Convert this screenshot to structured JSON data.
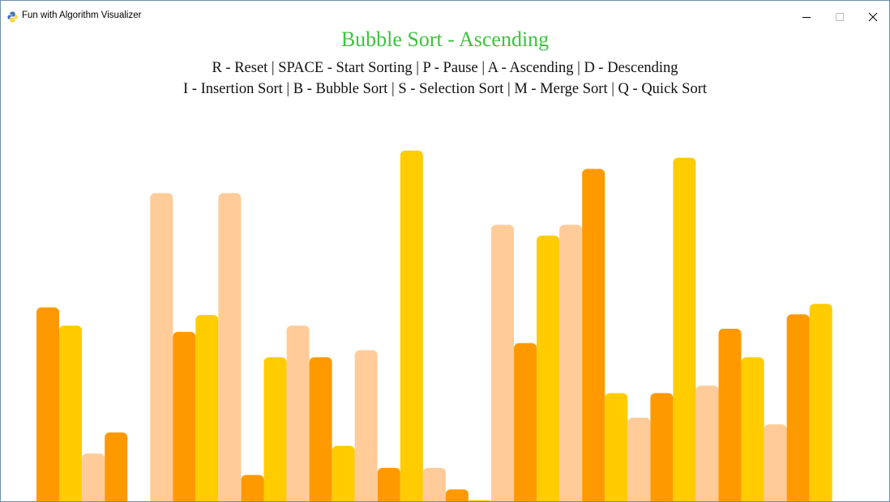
{
  "window": {
    "title": "Fun with Algorithm Visualizer",
    "icon": "python-icon",
    "controls": [
      "minimize-icon",
      "maximize-icon",
      "close-icon"
    ]
  },
  "header": {
    "title": "Bubble Sort - Ascending",
    "title_color": "#3ec23e",
    "help_line_1": "R - Reset | SPACE - Start Sorting | P - Pause | A - Ascending | D - Descending",
    "help_line_2": "I - Insertion Sort | B - Bubble Sort | S - Selection Sort | M - Merge Sort | Q - Quick Sort"
  },
  "colors": {
    "dark_orange": "#ff9900",
    "yellow": "#ffcc00",
    "peach": "#ffcc99"
  },
  "chart_data": {
    "type": "bar",
    "ylim": [
      0,
      1
    ],
    "values": [
      0.554,
      0.502,
      0.138,
      0.198,
      0,
      0.879,
      0.484,
      0.532,
      0.879,
      0.077,
      0.412,
      0.502,
      0.412,
      0.16,
      0.432,
      0.097,
      1.0,
      0.097,
      0.036,
      0.005,
      0.789,
      0.452,
      0.758,
      0.789,
      0.948,
      0.31,
      0.24,
      0.31,
      0.98,
      0.331,
      0.493,
      0.412,
      0.221,
      0.534,
      0.564
    ],
    "bar_colors": [
      "dark_orange",
      "yellow",
      "peach",
      "dark_orange",
      "yellow",
      "peach",
      "dark_orange",
      "yellow",
      "peach",
      "dark_orange",
      "yellow",
      "peach",
      "dark_orange",
      "yellow",
      "peach",
      "dark_orange",
      "yellow",
      "peach",
      "dark_orange",
      "yellow",
      "peach",
      "dark_orange",
      "yellow",
      "peach",
      "dark_orange",
      "yellow",
      "peach",
      "dark_orange",
      "yellow",
      "peach",
      "dark_orange",
      "yellow",
      "peach",
      "dark_orange",
      "yellow"
    ]
  }
}
